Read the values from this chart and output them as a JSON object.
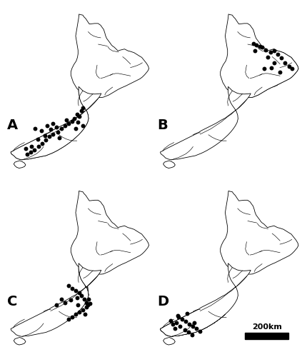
{
  "panel_labels": [
    "A",
    "B",
    "C",
    "D"
  ],
  "scale_bar_text": "200km",
  "background_color": "#ffffff",
  "hatch_pattern": "////",
  "dot_color": "#000000",
  "dot_size": 18,
  "panel_label_fontsize": 14,
  "xlim": [
    166.3,
    178.6
  ],
  "ylim": [
    -47.4,
    -34.2
  ],
  "dots_A": [
    [
      172.6,
      -43.5
    ],
    [
      172.1,
      -43.4
    ],
    [
      171.8,
      -43.6
    ],
    [
      171.5,
      -43.8
    ],
    [
      171.2,
      -44.0
    ],
    [
      170.9,
      -44.3
    ],
    [
      170.5,
      -44.5
    ],
    [
      170.2,
      -44.7
    ],
    [
      169.9,
      -45.0
    ],
    [
      169.6,
      -45.3
    ],
    [
      169.3,
      -45.5
    ],
    [
      168.9,
      -45.8
    ],
    [
      168.6,
      -46.0
    ],
    [
      168.3,
      -46.2
    ],
    [
      169.0,
      -44.0
    ],
    [
      169.5,
      -44.2
    ],
    [
      170.0,
      -43.8
    ],
    [
      172.7,
      -43.0
    ],
    [
      172.5,
      -42.8
    ],
    [
      172.9,
      -42.5
    ],
    [
      173.0,
      -42.3
    ],
    [
      172.3,
      -43.2
    ],
    [
      171.6,
      -43.3
    ],
    [
      170.8,
      -43.9
    ],
    [
      170.3,
      -44.1
    ],
    [
      169.8,
      -44.6
    ],
    [
      169.2,
      -44.9
    ],
    [
      168.7,
      -45.5
    ],
    [
      168.2,
      -45.7
    ],
    [
      170.5,
      -43.6
    ],
    [
      173.0,
      -43.8
    ],
    [
      171.0,
      -44.8
    ],
    [
      172.4,
      -44.0
    ]
  ],
  "dots_B": [
    [
      176.5,
      -37.5
    ],
    [
      176.8,
      -37.8
    ],
    [
      177.1,
      -38.1
    ],
    [
      177.4,
      -38.5
    ],
    [
      177.8,
      -38.8
    ],
    [
      178.0,
      -39.0
    ],
    [
      175.5,
      -37.2
    ],
    [
      175.8,
      -37.4
    ],
    [
      176.2,
      -37.6
    ],
    [
      176.0,
      -38.0
    ],
    [
      176.5,
      -38.5
    ],
    [
      177.0,
      -39.3
    ],
    [
      174.8,
      -36.9
    ],
    [
      175.0,
      -37.0
    ],
    [
      175.3,
      -37.1
    ],
    [
      176.3,
      -38.9
    ],
    [
      175.7,
      -39.0
    ],
    [
      174.9,
      -37.5
    ]
  ],
  "dots_C": [
    [
      171.8,
      -42.4
    ],
    [
      172.1,
      -42.6
    ],
    [
      172.4,
      -42.8
    ],
    [
      172.7,
      -43.0
    ],
    [
      172.9,
      -43.2
    ],
    [
      173.1,
      -43.5
    ],
    [
      173.3,
      -43.8
    ],
    [
      173.4,
      -44.0
    ],
    [
      173.3,
      -44.2
    ],
    [
      173.0,
      -44.4
    ],
    [
      172.7,
      -44.6
    ],
    [
      172.4,
      -44.8
    ],
    [
      172.1,
      -45.0
    ],
    [
      171.8,
      -45.2
    ],
    [
      172.5,
      -43.4
    ],
    [
      172.0,
      -43.6
    ],
    [
      171.5,
      -43.8
    ],
    [
      173.5,
      -43.5
    ],
    [
      173.6,
      -43.9
    ],
    [
      173.2,
      -44.8
    ],
    [
      172.6,
      -44.0
    ],
    [
      171.2,
      -43.5
    ],
    [
      170.8,
      -44.0
    ]
  ],
  "dots_D": [
    [
      168.5,
      -45.0
    ],
    [
      168.8,
      -45.2
    ],
    [
      169.1,
      -45.4
    ],
    [
      169.4,
      -45.6
    ],
    [
      169.7,
      -45.8
    ],
    [
      170.0,
      -46.0
    ],
    [
      170.3,
      -46.2
    ],
    [
      168.3,
      -45.5
    ],
    [
      168.6,
      -45.8
    ],
    [
      169.0,
      -46.1
    ],
    [
      169.3,
      -46.3
    ],
    [
      169.6,
      -46.5
    ],
    [
      167.8,
      -45.3
    ],
    [
      168.0,
      -45.6
    ],
    [
      168.2,
      -46.0
    ],
    [
      169.8,
      -45.5
    ],
    [
      169.2,
      -44.7
    ],
    [
      168.4,
      -44.9
    ]
  ]
}
